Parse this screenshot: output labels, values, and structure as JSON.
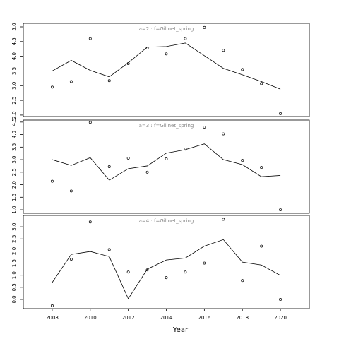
{
  "chart_data": [
    {
      "type": "scatter",
      "title": "a=2 : f=Gillnet_spring",
      "x": [
        2008,
        2009,
        2010,
        2011,
        2012,
        2013,
        2014,
        2015,
        2016,
        2017,
        2018,
        2019,
        2020
      ],
      "points": [
        2.95,
        3.14,
        4.6,
        3.17,
        3.75,
        4.28,
        4.08,
        4.6,
        4.98,
        4.2,
        3.55,
        3.07,
        2.05
      ],
      "line": [
        3.5,
        3.86,
        3.52,
        3.3,
        3.78,
        4.31,
        4.33,
        4.45,
        4.02,
        3.59,
        3.37,
        3.14,
        2.88
      ],
      "xlim": [
        2006.48,
        2021.52
      ],
      "ylim": [
        1.95,
        5.12
      ],
      "yticks": [
        {
          "value": 2,
          "label": "2.0"
        },
        2.5,
        {
          "value": 3,
          "label": "3.0"
        },
        3.5,
        {
          "value": 4,
          "label": "4.0"
        },
        4.5,
        {
          "value": 5,
          "label": "5.0"
        }
      ],
      "color": "#000000"
    },
    {
      "type": "scatter",
      "title": "a=3 : f=Gillnet_spring",
      "x": [
        2008,
        2009,
        2010,
        2011,
        2012,
        2013,
        2014,
        2015,
        2016,
        2017,
        2018,
        2019,
        2020
      ],
      "points": [
        2.14,
        1.75,
        4.49,
        2.72,
        3.06,
        2.5,
        3.03,
        3.42,
        4.3,
        4.03,
        2.97,
        2.69,
        1.0
      ],
      "line": [
        3.0,
        2.77,
        3.08,
        2.18,
        2.64,
        2.75,
        3.26,
        3.4,
        3.63,
        3.0,
        2.8,
        2.32,
        2.37
      ],
      "xlim": [
        2006.48,
        2021.52
      ],
      "ylim": [
        0.86,
        4.58
      ],
      "yticks": [
        {
          "value": 1,
          "label": "1.0"
        },
        1.5,
        {
          "value": 2,
          "label": "2.0"
        },
        2.5,
        {
          "value": 3,
          "label": "3.0"
        },
        3.5,
        {
          "value": 4,
          "label": "4.0"
        },
        4.5
      ],
      "color": "#000000"
    },
    {
      "type": "scatter",
      "title": "a=4 : f=Gillnet_spring",
      "x": [
        2008,
        2009,
        2010,
        2011,
        2012,
        2013,
        2014,
        2015,
        2016,
        2017,
        2018,
        2019,
        2020
      ],
      "points": [
        -0.26,
        1.66,
        3.2,
        2.06,
        1.13,
        1.22,
        0.9,
        1.13,
        1.5,
        3.31,
        0.78,
        2.2,
        0.0
      ],
      "line": [
        0.7,
        1.86,
        1.98,
        1.77,
        0.03,
        1.25,
        1.63,
        1.71,
        2.2,
        2.47,
        1.54,
        1.42,
        0.99
      ],
      "xlim": [
        2006.48,
        2021.52
      ],
      "ylim": [
        -0.38,
        3.47
      ],
      "yticks": [
        {
          "value": 0,
          "label": "0.0"
        },
        0.5,
        {
          "value": 1,
          "label": "1.0"
        },
        1.5,
        {
          "value": 2,
          "label": "2.0"
        },
        2.5,
        {
          "value": 3,
          "label": "3.0"
        }
      ],
      "xticks": [
        2008,
        2010,
        2012,
        2014,
        2016,
        2018,
        2020
      ],
      "xlabel": "Year",
      "color": "#000000"
    }
  ]
}
